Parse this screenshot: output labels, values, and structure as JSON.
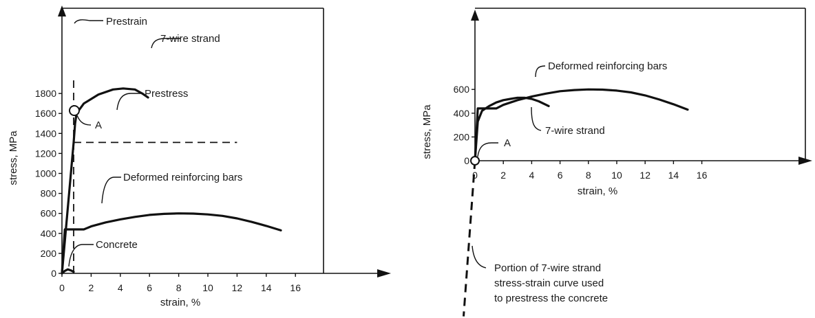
{
  "chart_data": [
    {
      "type": "line",
      "xlabel": "strain, %",
      "ylabel": "stress, MPa",
      "xlim": [
        0,
        17
      ],
      "ylim": [
        0,
        2000
      ],
      "xticks": [
        "0",
        "2",
        "4",
        "6",
        "8",
        "10",
        "12",
        "14",
        "16"
      ],
      "yticks": [
        "0",
        "200",
        "400",
        "600",
        "800",
        "1000",
        "1200",
        "1400",
        "1600",
        "1800"
      ],
      "series": [
        {
          "label": "7-wire strand",
          "x": [
            0,
            0.8,
            0.9,
            1.0,
            1.5,
            2.5,
            3.5,
            4.2,
            5.0,
            5.5,
            5.9
          ],
          "y": [
            0,
            1310,
            1500,
            1600,
            1700,
            1790,
            1840,
            1850,
            1840,
            1800,
            1760
          ]
        },
        {
          "label": "Deformed reinforcing bars",
          "x": [
            0,
            0.2,
            0.4,
            1.5,
            2.0,
            3.0,
            4.0,
            5.0,
            6.0,
            7.0,
            8.0,
            9.0,
            10.0,
            11.0,
            12.0,
            13.0,
            14.0,
            15.0
          ],
          "y": [
            0,
            440,
            440,
            440,
            470,
            510,
            540,
            565,
            585,
            595,
            600,
            598,
            590,
            575,
            550,
            515,
            475,
            430
          ]
        },
        {
          "label": "Concrete",
          "x": [
            0,
            0.2,
            0.4,
            0.6,
            0.8
          ],
          "y": [
            0,
            25,
            40,
            30,
            15
          ]
        },
        {
          "label": "Prestress",
          "x": [
            0.8,
            12.0
          ],
          "y": [
            1310,
            1310
          ]
        },
        {
          "label": "Prestrain",
          "x": [
            0.8,
            0.8
          ],
          "y": [
            0,
            1950
          ]
        }
      ],
      "annotations": [
        "Prestrain",
        "7-wire strand",
        "Prestress",
        "A",
        "Deformed reinforcing bars",
        "Concrete"
      ]
    },
    {
      "type": "line",
      "xlabel": "strain, %",
      "ylabel": "stress, MPa",
      "xticks": [
        "0",
        "2",
        "4",
        "6",
        "8",
        "10",
        "12",
        "14",
        "16"
      ],
      "yticks": [
        "0",
        "200",
        "400",
        "600"
      ],
      "series": [
        {
          "label": "Deformed reinforcing bars",
          "x": [
            0,
            0.2,
            0.4,
            1.5,
            2.0,
            3.0,
            4.0,
            5.0,
            6.0,
            7.0,
            8.0,
            9.0,
            10.0,
            11.0,
            12.0,
            13.0,
            14.0,
            15.0
          ],
          "y": [
            0,
            440,
            440,
            440,
            470,
            510,
            540,
            565,
            585,
            595,
            600,
            598,
            590,
            575,
            550,
            515,
            475,
            430
          ]
        },
        {
          "label": "7-wire strand",
          "x": [
            0,
            0.2,
            0.5,
            1.0,
            1.5,
            2.0,
            2.5,
            3.0,
            3.5,
            4.0,
            4.5,
            5.2
          ],
          "y": [
            0,
            330,
            420,
            460,
            490,
            510,
            520,
            530,
            530,
            520,
            500,
            460
          ]
        },
        {
          "label": "Portion of 7-wire strand stress-strain curve used to prestress the concrete",
          "x": [
            0,
            -0.8
          ],
          "y": [
            0,
            -1310
          ]
        }
      ],
      "annotations": [
        "Deformed reinforcing bars",
        "7-wire strand",
        "A",
        "Portion of 7-wire strand",
        "stress-strain curve used",
        "to prestress the concrete"
      ]
    }
  ]
}
